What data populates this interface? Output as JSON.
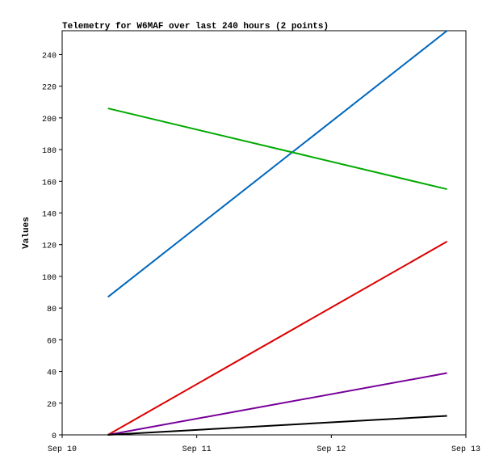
{
  "chart_data": {
    "type": "line",
    "title": "Telemetry for W6MAF over last 240 hours (2 points)",
    "y_label": "Values",
    "x": [
      0.34,
      2.86
    ],
    "xlim": [
      0,
      3
    ],
    "xticks": [
      {
        "value": 0,
        "label": "Sep 10"
      },
      {
        "value": 1,
        "label": "Sep 11"
      },
      {
        "value": 2,
        "label": "Sep 12"
      },
      {
        "value": 3,
        "label": "Sep 13"
      }
    ],
    "ylim": [
      0,
      255
    ],
    "yticks": [
      0,
      20,
      40,
      60,
      80,
      100,
      120,
      140,
      160,
      180,
      200,
      220,
      240
    ],
    "series": [
      {
        "color": "#0066bb",
        "values": [
          87,
          255
        ]
      },
      {
        "color": "#00aa00",
        "values": [
          206,
          155
        ]
      },
      {
        "color": "#dd0000",
        "values": [
          0,
          122
        ]
      },
      {
        "color": "#770099",
        "values": [
          0,
          39
        ]
      },
      {
        "color": "#000000",
        "values": [
          0,
          12
        ]
      }
    ]
  }
}
